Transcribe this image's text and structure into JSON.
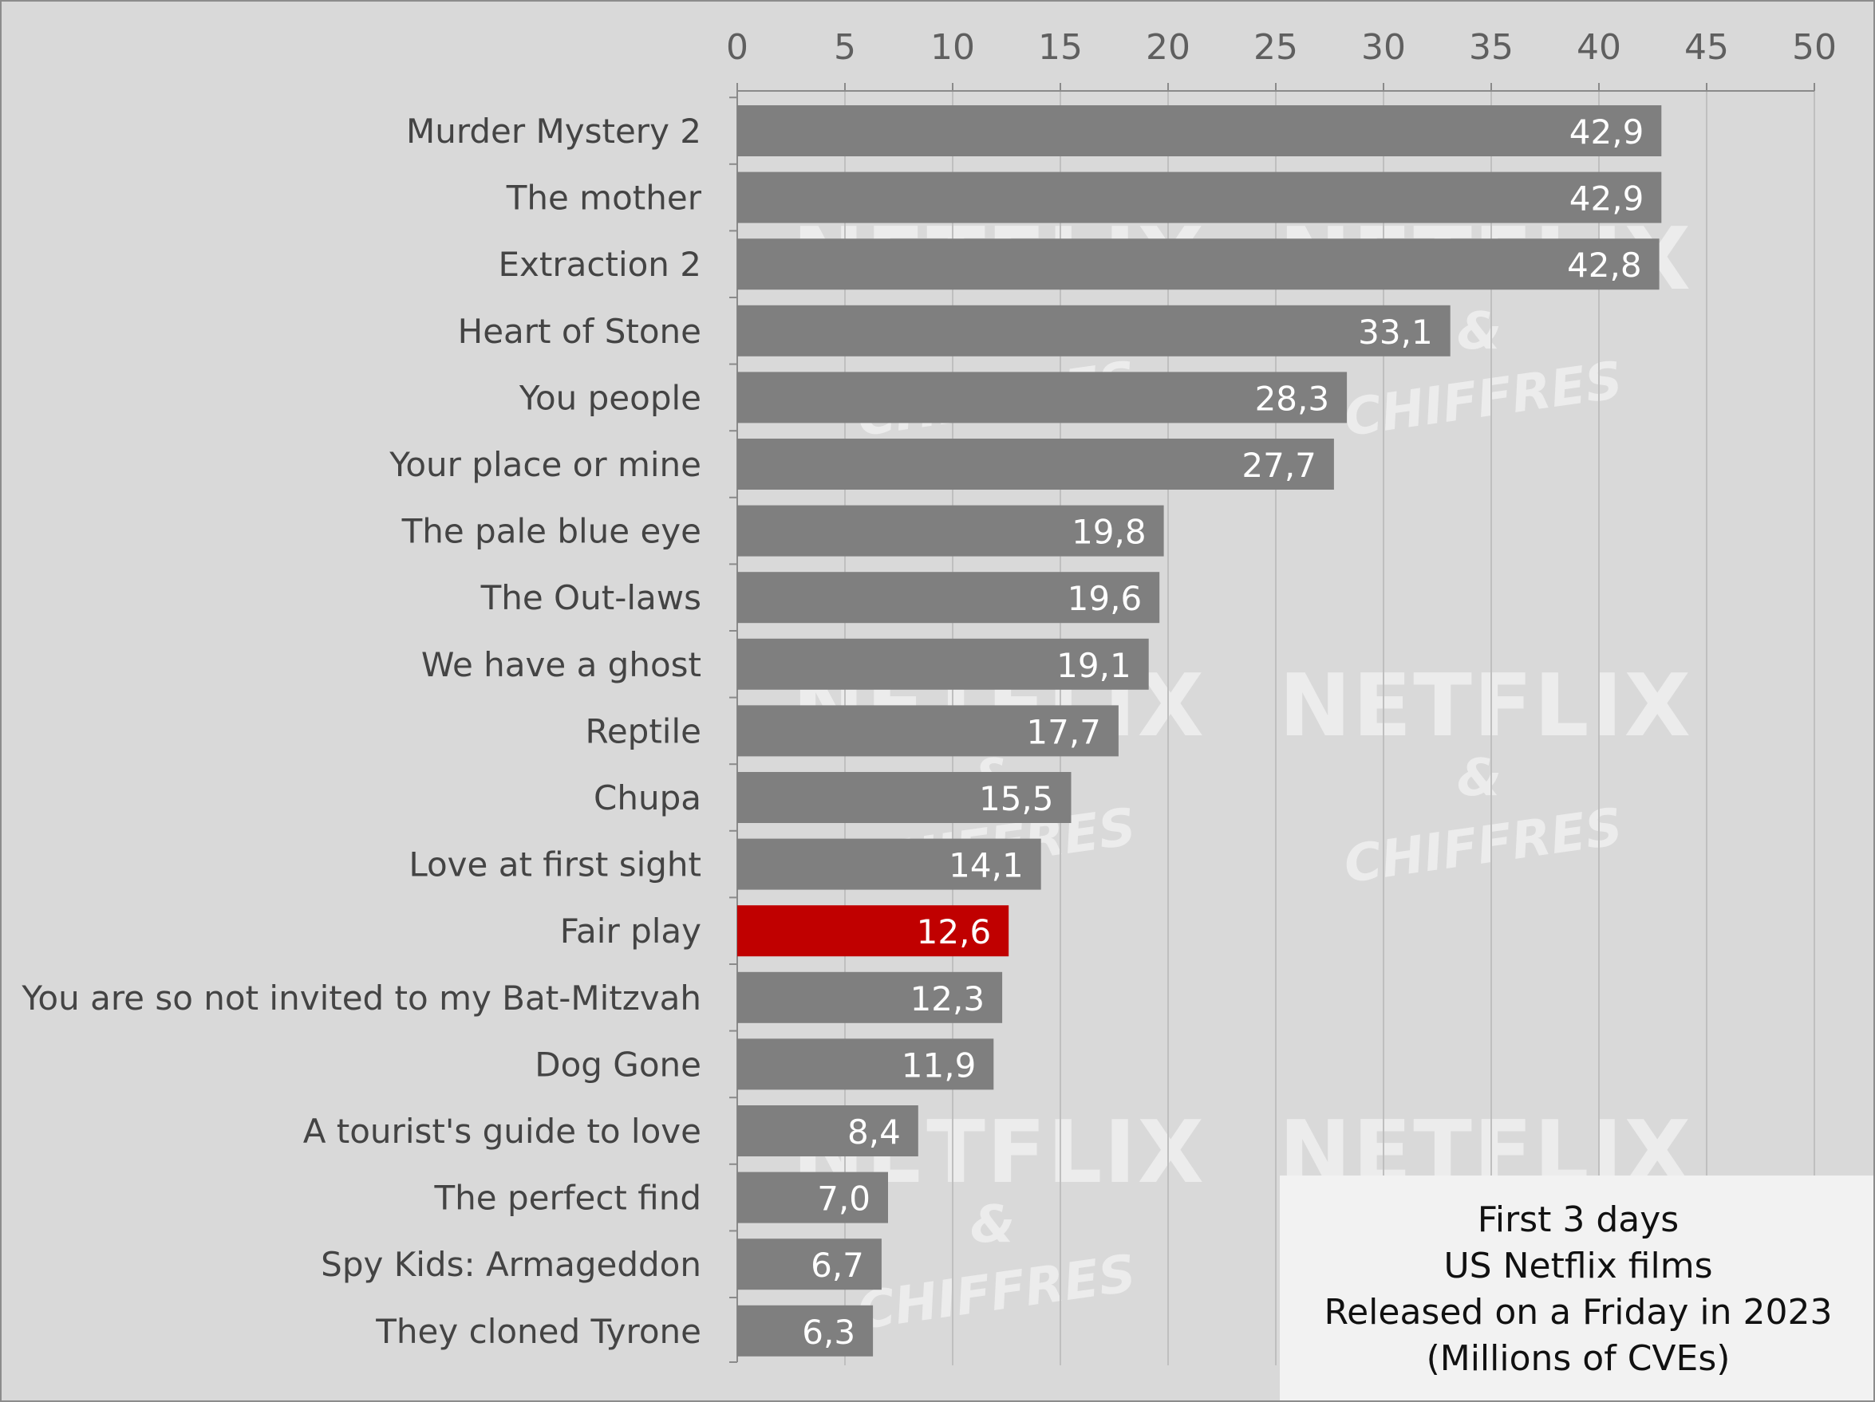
{
  "watermark": {
    "line1": "NETFLIX",
    "line2": "&",
    "line3": "CHIFFRES"
  },
  "caption": {
    "line1": "First 3 days",
    "line2": "US Netflix films",
    "line3": "Released on a Friday in 2023",
    "line4": "(Millions of CVEs)"
  },
  "chart_data": {
    "type": "bar",
    "orientation": "horizontal",
    "title": "First 3 days US Netflix films Released on a Friday in 2023 (Millions of CVEs)",
    "xlim": [
      0,
      50
    ],
    "x_ticks": [
      0,
      5,
      10,
      15,
      20,
      25,
      30,
      35,
      40,
      45,
      50
    ],
    "x_axis_position": "top",
    "grid": true,
    "categories": [
      "Murder Mystery 2",
      "The mother",
      "Extraction 2",
      "Heart of Stone",
      "You people",
      "Your place or mine",
      "The pale blue eye",
      "The Out-laws",
      "We have a ghost",
      "Reptile",
      "Chupa",
      "Love at first sight",
      "Fair play",
      "You are so not invited to my Bat-Mitzvah",
      "Dog Gone",
      "A tourist's guide to love",
      "The perfect find",
      "Spy Kids: Armageddon",
      "They cloned Tyrone"
    ],
    "values": [
      42.9,
      42.9,
      42.8,
      33.1,
      28.3,
      27.7,
      19.8,
      19.6,
      19.1,
      17.7,
      15.5,
      14.1,
      12.6,
      12.3,
      11.9,
      8.4,
      7.0,
      6.7,
      6.3
    ],
    "value_labels": [
      "42,9",
      "42,9",
      "42,8",
      "33,1",
      "28,3",
      "27,7",
      "19,8",
      "19,6",
      "19,1",
      "17,7",
      "15,5",
      "14,1",
      "12,6",
      "12,3",
      "11,9",
      "8,4",
      "7,0",
      "6,7",
      "6,3"
    ],
    "highlight": "Fair play",
    "colors": {
      "bar": "#7f7f7f",
      "highlight": "#c00000",
      "background": "#d9d9d9",
      "grid": "#bfbfbf"
    }
  }
}
